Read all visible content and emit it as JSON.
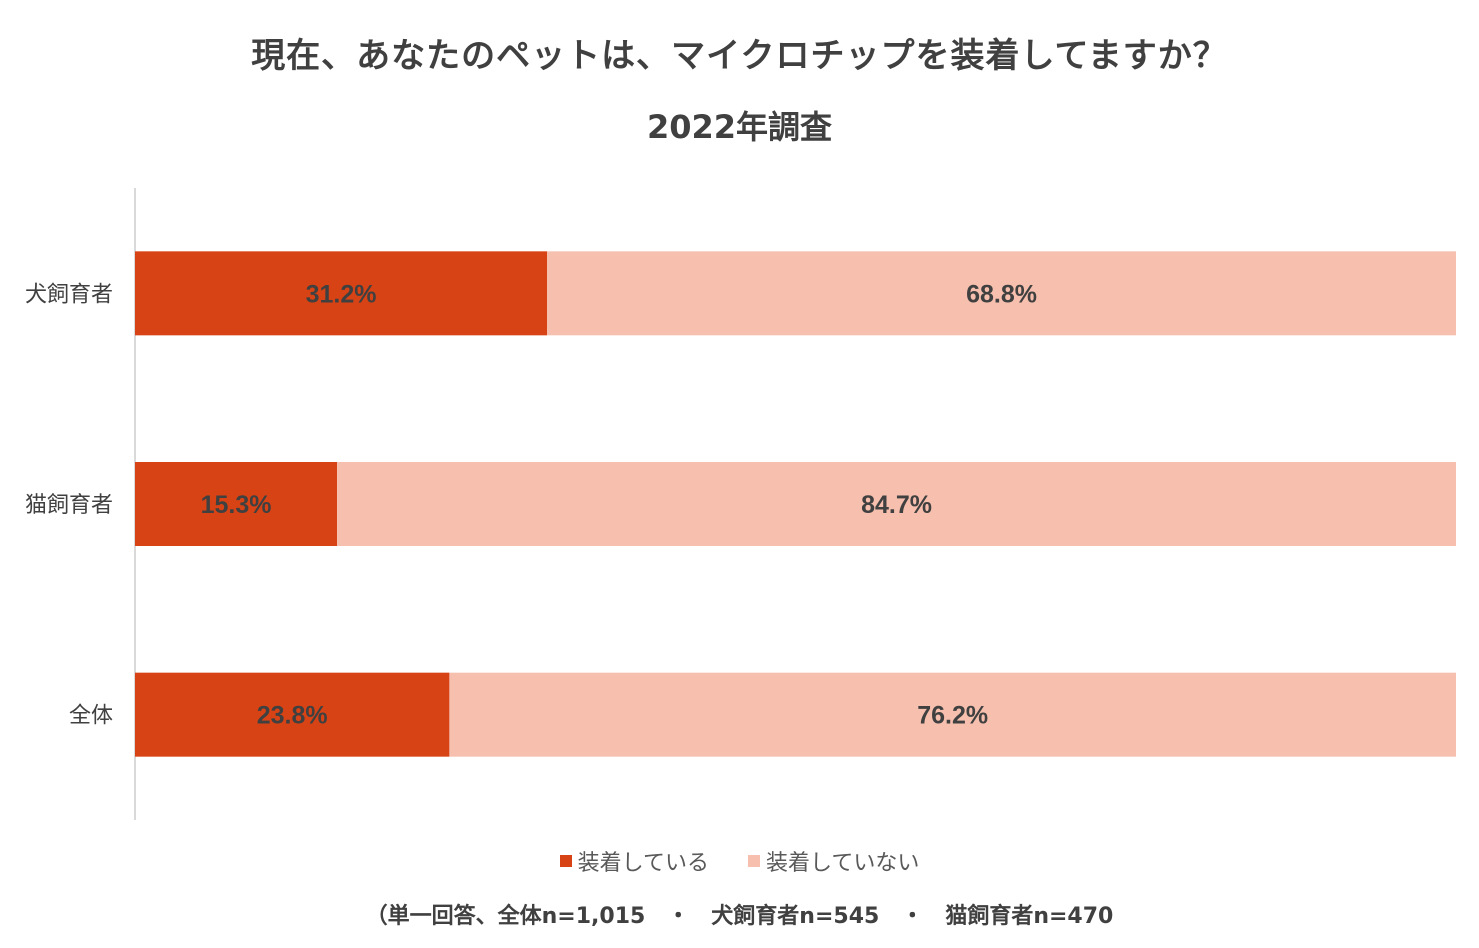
{
  "chart_data": {
    "type": "bar",
    "orientation": "horizontal",
    "stacked": true,
    "title": "現在、あなたのペットは、マイクロチップを装着してますか？",
    "subtitle": "2022年調査",
    "categories": [
      "犬飼育者",
      "猫飼育者",
      "全体"
    ],
    "series": [
      {
        "name": "装着している",
        "color": "#D84315",
        "values": [
          31.2,
          15.3,
          23.8
        ],
        "labels": [
          "31.2%",
          "15.3%",
          "23.8%"
        ]
      },
      {
        "name": "装着していない",
        "color": "#F6BFAE",
        "values": [
          68.8,
          84.7,
          76.2
        ],
        "labels": [
          "68.8%",
          "84.7%",
          "76.2%"
        ]
      }
    ],
    "xlim": [
      0,
      100
    ],
    "legend_position": "bottom",
    "footnote": "（単一回答、全体n=1,015　・　犬飼育者n=545　・　猫飼育者n=470"
  }
}
